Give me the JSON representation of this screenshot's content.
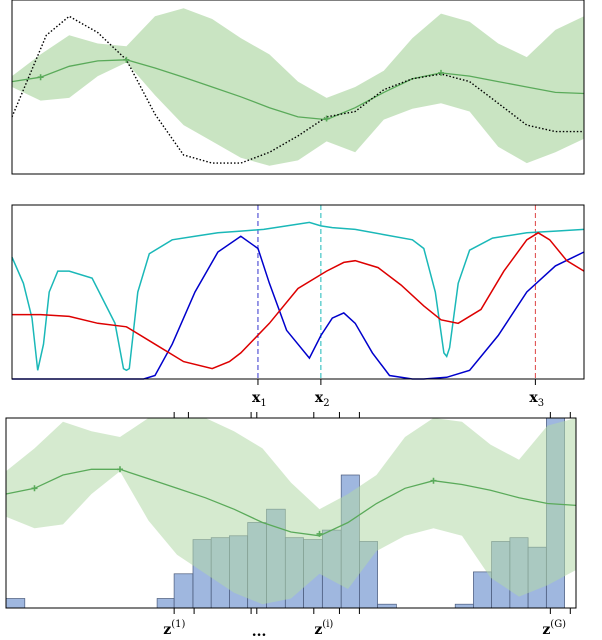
{
  "chart_data": [
    {
      "type": "line",
      "xlim": [
        0,
        1
      ],
      "ylim": [
        -1.6,
        1.6
      ],
      "axes_visible": false,
      "series": [
        {
          "style": "confidence-band",
          "color": "#b2d8a8",
          "x": [
            0,
            0.05,
            0.1,
            0.15,
            0.2,
            0.25,
            0.3,
            0.35,
            0.4,
            0.45,
            0.5,
            0.55,
            0.6,
            0.65,
            0.7,
            0.75,
            0.8,
            0.85,
            0.9,
            0.95,
            1
          ],
          "upper": [
            0.2,
            0.6,
            0.95,
            0.8,
            0.75,
            1.3,
            1.45,
            1.25,
            0.9,
            0.6,
            0.1,
            -0.2,
            0.0,
            0.3,
            0.9,
            1.35,
            1.2,
            0.8,
            0.55,
            1.05,
            1.3
          ],
          "lower": [
            0.0,
            -0.25,
            -0.2,
            0.2,
            0.45,
            -0.15,
            -0.7,
            -1.0,
            -1.3,
            -1.45,
            -1.35,
            -1.0,
            -1.2,
            -0.6,
            -0.4,
            -0.3,
            -0.45,
            -1.1,
            -1.4,
            -1.2,
            -0.95
          ]
        },
        {
          "style": "mean",
          "color": "#5aaa5a",
          "x": [
            0,
            0.05,
            0.1,
            0.15,
            0.2,
            0.25,
            0.3,
            0.35,
            0.4,
            0.45,
            0.5,
            0.55,
            0.6,
            0.65,
            0.7,
            0.75,
            0.8,
            0.85,
            0.9,
            0.95,
            1
          ],
          "y": [
            0.1,
            0.18,
            0.38,
            0.48,
            0.5,
            0.35,
            0.18,
            0.0,
            -0.18,
            -0.38,
            -0.55,
            -0.6,
            -0.38,
            -0.1,
            0.15,
            0.26,
            0.2,
            0.1,
            0.0,
            -0.1,
            -0.12
          ]
        },
        {
          "style": "dotted",
          "color": "#000000",
          "x": [
            0,
            0.03,
            0.06,
            0.1,
            0.15,
            0.2,
            0.25,
            0.3,
            0.35,
            0.4,
            0.45,
            0.5,
            0.55,
            0.6,
            0.65,
            0.7,
            0.75,
            0.8,
            0.85,
            0.9,
            0.95,
            1
          ],
          "y": [
            -0.55,
            0.2,
            0.95,
            1.3,
            1.0,
            0.5,
            -0.5,
            -1.25,
            -1.4,
            -1.4,
            -1.2,
            -0.9,
            -0.55,
            -0.45,
            -0.05,
            0.15,
            0.24,
            0.1,
            -0.3,
            -0.7,
            -0.82,
            -0.82
          ]
        },
        {
          "style": "observations",
          "color": "#5aaa5a",
          "x": [
            0.05,
            0.2,
            0.55,
            0.75
          ],
          "y": [
            0.18,
            0.5,
            -0.58,
            0.26
          ]
        }
      ]
    },
    {
      "type": "line",
      "xlim": [
        0,
        1
      ],
      "ylim": [
        0,
        1
      ],
      "axes_visible": false,
      "series": [
        {
          "color": "#1ab8b8",
          "x": [
            0,
            0.02,
            0.035,
            0.045,
            0.055,
            0.065,
            0.08,
            0.1,
            0.14,
            0.18,
            0.195,
            0.2,
            0.205,
            0.22,
            0.24,
            0.28,
            0.32,
            0.36,
            0.4,
            0.44,
            0.48,
            0.52,
            0.54,
            0.56,
            0.6,
            0.65,
            0.7,
            0.72,
            0.74,
            0.755,
            0.76,
            0.765,
            0.78,
            0.8,
            0.84,
            0.9,
            0.95,
            1
          ],
          "y": [
            0.7,
            0.55,
            0.35,
            0.05,
            0.2,
            0.5,
            0.62,
            0.62,
            0.58,
            0.32,
            0.06,
            0.05,
            0.06,
            0.5,
            0.72,
            0.8,
            0.82,
            0.84,
            0.85,
            0.86,
            0.88,
            0.9,
            0.88,
            0.87,
            0.86,
            0.83,
            0.8,
            0.75,
            0.5,
            0.15,
            0.13,
            0.18,
            0.55,
            0.74,
            0.81,
            0.84,
            0.85,
            0.86
          ]
        },
        {
          "color": "#0000cc",
          "x": [
            0,
            0.05,
            0.1,
            0.15,
            0.2,
            0.23,
            0.25,
            0.28,
            0.32,
            0.36,
            0.4,
            0.43,
            0.45,
            0.48,
            0.52,
            0.54,
            0.56,
            0.58,
            0.6,
            0.63,
            0.66,
            0.7,
            0.72,
            0.76,
            0.8,
            0.85,
            0.9,
            0.95,
            1
          ],
          "y": [
            0.0,
            0.0,
            0.0,
            0.0,
            0.0,
            0.0,
            0.02,
            0.2,
            0.5,
            0.73,
            0.82,
            0.75,
            0.55,
            0.28,
            0.12,
            0.25,
            0.35,
            0.38,
            0.32,
            0.15,
            0.02,
            0.0,
            0.0,
            0.01,
            0.05,
            0.25,
            0.5,
            0.65,
            0.73
          ]
        },
        {
          "color": "#dd0000",
          "x": [
            0,
            0.05,
            0.1,
            0.15,
            0.2,
            0.25,
            0.3,
            0.35,
            0.38,
            0.4,
            0.45,
            0.5,
            0.55,
            0.58,
            0.6,
            0.64,
            0.68,
            0.72,
            0.75,
            0.78,
            0.82,
            0.86,
            0.9,
            0.92,
            0.94,
            0.97,
            1
          ],
          "y": [
            0.37,
            0.37,
            0.36,
            0.32,
            0.3,
            0.2,
            0.1,
            0.06,
            0.1,
            0.15,
            0.32,
            0.52,
            0.62,
            0.67,
            0.68,
            0.64,
            0.54,
            0.42,
            0.34,
            0.32,
            0.4,
            0.62,
            0.8,
            0.84,
            0.8,
            0.68,
            0.62
          ]
        }
      ],
      "markers": [
        {
          "label": "x",
          "sub": "1",
          "x": 0.43,
          "color": "#3333cc"
        },
        {
          "label": "x",
          "sub": "2",
          "x": 0.54,
          "color": "#1ab8b8"
        },
        {
          "label": "x",
          "sub": "3",
          "x": 0.915,
          "color": "#dd4444"
        }
      ]
    },
    {
      "type": "bar",
      "xlim": [
        0,
        1
      ],
      "ylim": [
        0,
        1
      ],
      "axes_visible": false,
      "bar_color": "#7f9fd4",
      "bars": [
        {
          "x0": 0.0,
          "x1": 0.033,
          "h": 0.05
        },
        {
          "x0": 0.265,
          "x1": 0.295,
          "h": 0.05
        },
        {
          "x0": 0.295,
          "x1": 0.328,
          "h": 0.18
        },
        {
          "x0": 0.328,
          "x1": 0.36,
          "h": 0.36
        },
        {
          "x0": 0.36,
          "x1": 0.392,
          "h": 0.37
        },
        {
          "x0": 0.392,
          "x1": 0.424,
          "h": 0.38
        },
        {
          "x0": 0.424,
          "x1": 0.457,
          "h": 0.45
        },
        {
          "x0": 0.457,
          "x1": 0.49,
          "h": 0.52
        },
        {
          "x0": 0.49,
          "x1": 0.522,
          "h": 0.37
        },
        {
          "x0": 0.522,
          "x1": 0.555,
          "h": 0.36
        },
        {
          "x0": 0.555,
          "x1": 0.588,
          "h": 0.41
        },
        {
          "x0": 0.588,
          "x1": 0.62,
          "h": 0.7
        },
        {
          "x0": 0.62,
          "x1": 0.652,
          "h": 0.35
        },
        {
          "x0": 0.652,
          "x1": 0.685,
          "h": 0.02
        },
        {
          "x0": 0.788,
          "x1": 0.82,
          "h": 0.02
        },
        {
          "x0": 0.82,
          "x1": 0.852,
          "h": 0.19
        },
        {
          "x0": 0.852,
          "x1": 0.884,
          "h": 0.35
        },
        {
          "x0": 0.884,
          "x1": 0.916,
          "h": 0.37
        },
        {
          "x0": 0.916,
          "x1": 0.948,
          "h": 0.32
        },
        {
          "x0": 0.948,
          "x1": 0.98,
          "h": 1.0
        }
      ],
      "band": {
        "color": "#b2d8a8",
        "x": [
          0,
          0.05,
          0.1,
          0.15,
          0.2,
          0.25,
          0.3,
          0.35,
          0.4,
          0.45,
          0.5,
          0.55,
          0.6,
          0.65,
          0.7,
          0.75,
          0.8,
          0.85,
          0.9,
          0.95,
          1
        ],
        "upper": [
          0.72,
          0.84,
          0.98,
          0.93,
          0.9,
          1.0,
          1.0,
          1.0,
          0.93,
          0.84,
          0.66,
          0.52,
          0.6,
          0.7,
          0.9,
          1.0,
          0.98,
          0.86,
          0.78,
          0.96,
          1.0
        ],
        "lower": [
          0.48,
          0.42,
          0.44,
          0.6,
          0.72,
          0.46,
          0.28,
          0.18,
          0.08,
          0.02,
          0.05,
          0.18,
          0.1,
          0.3,
          0.38,
          0.42,
          0.38,
          0.16,
          0.06,
          0.12,
          0.2
        ]
      },
      "mean": {
        "color": "#5aaa5a",
        "x": [
          0,
          0.05,
          0.1,
          0.15,
          0.2,
          0.25,
          0.3,
          0.35,
          0.4,
          0.45,
          0.5,
          0.55,
          0.6,
          0.65,
          0.7,
          0.75,
          0.8,
          0.85,
          0.9,
          0.95,
          1
        ],
        "y": [
          0.6,
          0.63,
          0.7,
          0.73,
          0.73,
          0.68,
          0.63,
          0.58,
          0.52,
          0.45,
          0.4,
          0.38,
          0.45,
          0.55,
          0.63,
          0.67,
          0.65,
          0.62,
          0.58,
          0.55,
          0.54
        ]
      },
      "observations": {
        "x": [
          0.05,
          0.2,
          0.55,
          0.75
        ],
        "y": [
          0.63,
          0.73,
          0.39,
          0.67
        ]
      },
      "top_ticks": [
        0.295,
        0.32,
        0.43,
        0.44,
        0.54,
        0.585,
        0.62,
        0.955,
        0.99
      ],
      "bottom_ticks": [
        0.295,
        0.33,
        0.43,
        0.44,
        0.54,
        0.585,
        0.62,
        0.955,
        0.99
      ],
      "labels": [
        {
          "base": "z",
          "sup": "(1)",
          "x": 0.29
        },
        {
          "base": "z",
          "sup": "(i)",
          "x": 0.555
        },
        {
          "base": "z",
          "sup": "(G)",
          "x": 0.955
        }
      ],
      "ellipsis": {
        "text": "...",
        "x": 0.44
      }
    }
  ]
}
